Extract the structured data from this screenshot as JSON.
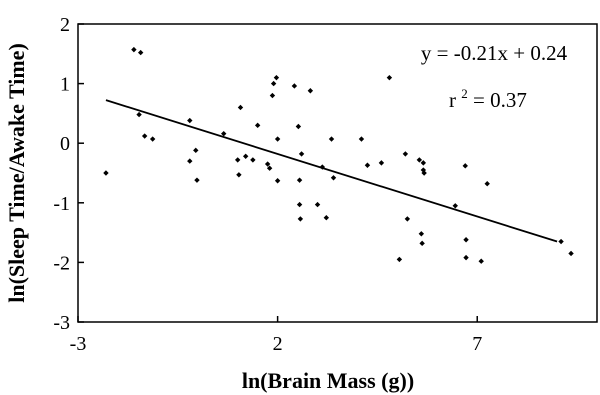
{
  "chart_data": {
    "type": "scatter",
    "xlabel": "ln(Brain Mass (g))",
    "ylabel": "ln(Sleep Time/Awake Time)",
    "xlim": [
      -3,
      10
    ],
    "ylim": [
      -3,
      2
    ],
    "xticks": [
      -3,
      2,
      7
    ],
    "yticks": [
      -3,
      -2,
      -1,
      0,
      1,
      2
    ],
    "grid": false,
    "colors": {
      "points": "#000000",
      "line": "#000000",
      "axes": "#000000"
    },
    "regression": {
      "slope": -0.21,
      "intercept": 0.24,
      "x_range": [
        -2.3,
        9.0
      ],
      "equation": "y = -0.21x + 0.24",
      "r2_base": "r",
      "r2_exp": "2",
      "r2_value": " = 0.37"
    },
    "points": [
      {
        "x": -2.3,
        "y": -0.5
      },
      {
        "x": -1.6,
        "y": 1.57
      },
      {
        "x": -1.43,
        "y": 1.52
      },
      {
        "x": -1.47,
        "y": 0.48
      },
      {
        "x": -1.33,
        "y": 0.12
      },
      {
        "x": -1.13,
        "y": 0.07
      },
      {
        "x": -0.2,
        "y": 0.38
      },
      {
        "x": -0.2,
        "y": -0.3
      },
      {
        "x": -0.05,
        "y": -0.12
      },
      {
        "x": -0.02,
        "y": -0.62
      },
      {
        "x": 0.65,
        "y": 0.16
      },
      {
        "x": 1.0,
        "y": -0.28
      },
      {
        "x": 1.03,
        "y": -0.53
      },
      {
        "x": 1.07,
        "y": 0.6
      },
      {
        "x": 1.2,
        "y": -0.22
      },
      {
        "x": 1.38,
        "y": -0.28
      },
      {
        "x": 1.5,
        "y": 0.3
      },
      {
        "x": 1.75,
        "y": -0.35
      },
      {
        "x": 1.8,
        "y": -0.42
      },
      {
        "x": 1.87,
        "y": 0.8
      },
      {
        "x": 1.9,
        "y": 1.0
      },
      {
        "x": 1.97,
        "y": 1.1
      },
      {
        "x": 2.0,
        "y": 0.07
      },
      {
        "x": 2.0,
        "y": -0.63
      },
      {
        "x": 2.42,
        "y": 0.96
      },
      {
        "x": 2.52,
        "y": 0.28
      },
      {
        "x": 2.55,
        "y": -0.62
      },
      {
        "x": 2.55,
        "y": -1.03
      },
      {
        "x": 2.57,
        "y": -1.27
      },
      {
        "x": 2.6,
        "y": -0.18
      },
      {
        "x": 2.82,
        "y": 0.88
      },
      {
        "x": 3.0,
        "y": -1.03
      },
      {
        "x": 3.12,
        "y": -0.4
      },
      {
        "x": 3.22,
        "y": -1.25
      },
      {
        "x": 3.35,
        "y": 0.07
      },
      {
        "x": 3.4,
        "y": -0.58
      },
      {
        "x": 4.1,
        "y": 0.07
      },
      {
        "x": 4.25,
        "y": -0.37
      },
      {
        "x": 4.6,
        "y": -0.33
      },
      {
        "x": 4.8,
        "y": 1.1
      },
      {
        "x": 5.05,
        "y": -1.95
      },
      {
        "x": 5.2,
        "y": -0.18
      },
      {
        "x": 5.25,
        "y": -1.27
      },
      {
        "x": 5.55,
        "y": -0.28
      },
      {
        "x": 5.6,
        "y": -1.52
      },
      {
        "x": 5.62,
        "y": -1.68
      },
      {
        "x": 5.65,
        "y": -0.33
      },
      {
        "x": 5.65,
        "y": -0.45
      },
      {
        "x": 5.67,
        "y": -0.5
      },
      {
        "x": 6.45,
        "y": -1.05
      },
      {
        "x": 6.7,
        "y": -0.38
      },
      {
        "x": 6.72,
        "y": -1.62
      },
      {
        "x": 6.72,
        "y": -1.92
      },
      {
        "x": 7.1,
        "y": -1.98
      },
      {
        "x": 7.25,
        "y": -0.68
      },
      {
        "x": 9.1,
        "y": -1.65
      },
      {
        "x": 9.35,
        "y": -1.85
      }
    ]
  }
}
